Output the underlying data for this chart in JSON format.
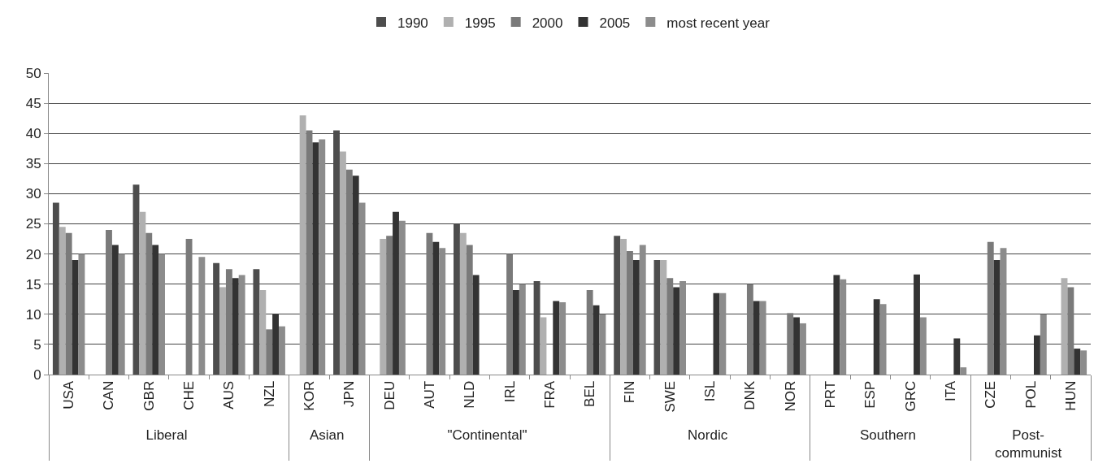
{
  "chart_data": {
    "type": "bar",
    "categories": [
      "USA",
      "CAN",
      "GBR",
      "CHE",
      "AUS",
      "NZL",
      "KOR",
      "JPN",
      "DEU",
      "AUT",
      "NLD",
      "IRL",
      "FRA",
      "BEL",
      "FIN",
      "SWE",
      "ISL",
      "DNK",
      "NOR",
      "PRT",
      "ESP",
      "GRC",
      "ITA",
      "CZE",
      "POL",
      "HUN"
    ],
    "series": [
      {
        "name": "1990",
        "color": "#4d4d4d",
        "values": [
          28.5,
          null,
          31.5,
          null,
          18.5,
          17.5,
          null,
          40.5,
          null,
          null,
          25,
          null,
          15.5,
          null,
          23,
          19,
          null,
          null,
          null,
          null,
          null,
          null,
          null,
          null,
          null,
          null
        ]
      },
      {
        "name": "1995",
        "color": "#b0b0b0",
        "values": [
          24.5,
          null,
          27,
          null,
          14.5,
          14,
          43,
          37,
          22.5,
          null,
          23.5,
          null,
          9.5,
          null,
          22.5,
          19,
          null,
          null,
          null,
          null,
          null,
          null,
          null,
          null,
          null,
          16
        ]
      },
      {
        "name": "2000",
        "color": "#7a7a7a",
        "values": [
          23.5,
          24,
          23.5,
          22.5,
          17.5,
          7.5,
          40.5,
          34,
          23,
          23.5,
          21.5,
          20,
          null,
          14,
          20.5,
          16,
          null,
          15,
          10.2,
          null,
          null,
          null,
          null,
          22,
          null,
          14.5
        ]
      },
      {
        "name": "2005",
        "color": "#333333",
        "values": [
          19,
          21.5,
          21.5,
          null,
          16,
          10,
          38.5,
          33,
          27,
          22,
          16.5,
          14,
          12.2,
          11.5,
          19,
          14.5,
          13.5,
          12.2,
          9.5,
          16.5,
          12.5,
          16.6,
          6,
          19,
          6.5,
          4.3
        ]
      },
      {
        "name": "most recent year",
        "color": "#8c8c8c",
        "values": [
          20,
          20,
          20,
          19.5,
          16.5,
          8,
          39,
          28.5,
          25.5,
          21,
          null,
          15,
          12,
          10,
          21.5,
          15.5,
          13.5,
          12.2,
          8.5,
          15.8,
          11.7,
          9.5,
          1.2,
          21,
          10,
          4
        ]
      }
    ],
    "annotations": [
      "Liberal",
      "Asian",
      "\"Continental\"",
      "Nordic",
      "Southern",
      "Post-\ncommunist"
    ],
    "ylim": [
      0,
      50
    ],
    "yticks": [
      0,
      5,
      10,
      15,
      20,
      25,
      30,
      35,
      40,
      45,
      50
    ],
    "grid": "y",
    "legend": "top"
  }
}
